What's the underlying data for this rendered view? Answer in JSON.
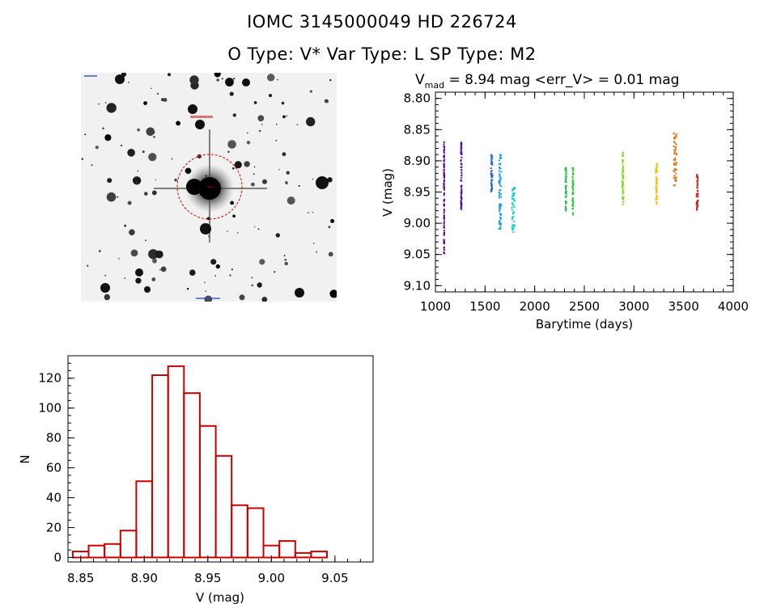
{
  "header": {
    "title_line1": "IOMC 3145000049    HD 226724",
    "title_line2": "O Type: V*   Var Type: L   SP Type: M2"
  },
  "lightcurve": {
    "stats_label": "V",
    "stats_sub": "mad",
    "stats_text": " = 8.94 mag <err_V> = 0.01 mag"
  },
  "chart_data": [
    {
      "type": "scatter",
      "xlabel": "Barytime (days)",
      "ylabel": "V (mag)",
      "xlim": [
        1000,
        4000
      ],
      "ylim": [
        9.11,
        8.79
      ],
      "y_inverted": true,
      "x_ticks": [
        1000,
        1500,
        2000,
        2500,
        3000,
        3500,
        4000
      ],
      "y_ticks": [
        "8.80",
        "8.85",
        "8.90",
        "8.95",
        "9.00",
        "9.05",
        "9.10"
      ],
      "groups": [
        {
          "x_start": 1085,
          "x_end": 1090,
          "y_min": 8.87,
          "y_max": 9.05,
          "color": "#5a0a8a"
        },
        {
          "x_start": 1255,
          "x_end": 1265,
          "y_min": 8.87,
          "y_max": 8.98,
          "color": "#4b12a6"
        },
        {
          "x_start": 1560,
          "x_end": 1575,
          "y_min": 8.89,
          "y_max": 8.95,
          "color": "#2060d0"
        },
        {
          "x_start": 1640,
          "x_end": 1665,
          "y_min": 8.89,
          "y_max": 9.01,
          "color": "#1aa0e6"
        },
        {
          "x_start": 1770,
          "x_end": 1800,
          "y_min": 8.94,
          "y_max": 9.02,
          "color": "#1ccfc8"
        },
        {
          "x_start": 2310,
          "x_end": 2320,
          "y_min": 8.91,
          "y_max": 8.98,
          "color": "#22c04a"
        },
        {
          "x_start": 2380,
          "x_end": 2390,
          "y_min": 8.91,
          "y_max": 8.99,
          "color": "#34c83a"
        },
        {
          "x_start": 2880,
          "x_end": 2895,
          "y_min": 8.88,
          "y_max": 8.97,
          "color": "#8ad82a"
        },
        {
          "x_start": 3220,
          "x_end": 3235,
          "y_min": 8.9,
          "y_max": 8.97,
          "color": "#f0c010"
        },
        {
          "x_start": 3400,
          "x_end": 3430,
          "y_min": 8.85,
          "y_max": 8.94,
          "color": "#e07818"
        },
        {
          "x_start": 3630,
          "x_end": 3645,
          "y_min": 8.92,
          "y_max": 8.98,
          "color": "#c0281e"
        }
      ]
    },
    {
      "type": "bar",
      "xlabel": "V (mag)",
      "ylabel": "N",
      "xlim": [
        8.84,
        9.08
      ],
      "ylim": [
        -3,
        135
      ],
      "x_ticks": [
        "8.85",
        "8.90",
        "8.95",
        "9.00",
        "9.05"
      ],
      "y_ticks": [
        "0",
        "20",
        "40",
        "60",
        "80",
        "100",
        "120"
      ],
      "bin_width": 0.0125,
      "bins": [
        8.85,
        8.8625,
        8.875,
        8.8875,
        8.9,
        8.9125,
        8.925,
        8.9375,
        8.95,
        8.9625,
        8.975,
        8.9875,
        9.0,
        9.0125,
        9.025,
        9.0375,
        9.05
      ],
      "values": [
        4,
        8,
        9,
        18,
        51,
        122,
        128,
        110,
        88,
        68,
        35,
        33,
        8,
        11,
        3,
        4,
        0
      ],
      "color": "#cc0000"
    }
  ]
}
